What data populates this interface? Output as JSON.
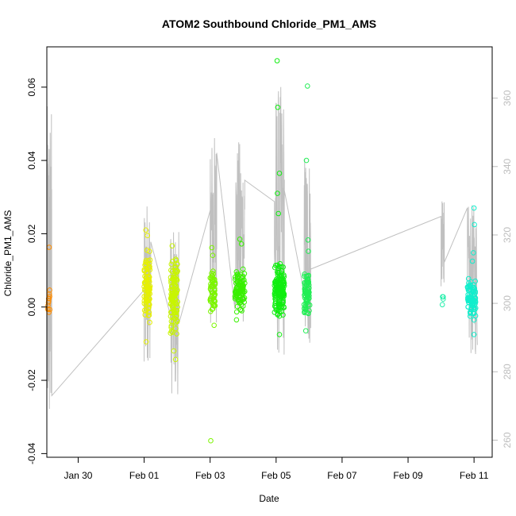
{
  "chart_data": {
    "type": "scatter",
    "title": "ATOM2 Southbound Chloride_PM1_AMS",
    "xlabel": "Date",
    "ylabel": "Chloride_PM1_AMS",
    "x_unit": "days",
    "x_ticks": [
      {
        "value": 30,
        "label": "Jan 30"
      },
      {
        "value": 32,
        "label": "Feb 01"
      },
      {
        "value": 34,
        "label": "Feb 03"
      },
      {
        "value": 36,
        "label": "Feb 05"
      },
      {
        "value": 38,
        "label": "Feb 07"
      },
      {
        "value": 40,
        "label": "Feb 09"
      },
      {
        "value": 42,
        "label": "Feb 11"
      }
    ],
    "xlim": [
      29.05,
      42.55
    ],
    "ylim": [
      -0.041,
      0.071
    ],
    "y_ticks": [
      -0.04,
      -0.02,
      0.0,
      0.02,
      0.04,
      0.06
    ],
    "y_tick_labels": [
      "-0.04",
      "-0.02",
      "0.00",
      "0.02",
      "0.04",
      "0.06"
    ],
    "y2_lim": [
      255,
      375
    ],
    "y2_ticks": [
      260,
      280,
      300,
      320,
      340,
      360
    ],
    "y2_tick_labels": [
      "260",
      "280",
      "300",
      "320",
      "340",
      "360"
    ],
    "y2_color": "#bdbdbd",
    "line_color": "#c0c0c0",
    "grid": false,
    "legend": "none",
    "secondary_series_description": "Right-axis series drawn as grey line",
    "clusters": [
      {
        "x0": 29.08,
        "x1": 29.16,
        "n": 12,
        "ymin": -0.002,
        "ymax": 0.007,
        "color": "#ff8c00",
        "extra": [
          [
            29.12,
            0.0163
          ]
        ]
      },
      {
        "x0": 32.0,
        "x1": 32.18,
        "n": 90,
        "ymin": -0.006,
        "ymax": 0.016,
        "color": "#e5f000",
        "extra": [
          [
            32.05,
            0.021
          ],
          [
            32.1,
            0.0195
          ],
          [
            32.06,
            -0.0095
          ]
        ]
      },
      {
        "x0": 32.8,
        "x1": 33.02,
        "n": 110,
        "ymin": -0.008,
        "ymax": 0.015,
        "color": "#c8f500",
        "extra": [
          [
            32.9,
            -0.012
          ],
          [
            32.95,
            -0.0143
          ],
          [
            32.85,
            0.0167
          ]
        ]
      },
      {
        "x0": 34.0,
        "x1": 34.16,
        "n": 55,
        "ymin": -0.002,
        "ymax": 0.011,
        "color": "#7cf500",
        "extra": [
          [
            34.05,
            0.0162
          ],
          [
            34.08,
            0.0141
          ],
          [
            34.12,
            -0.005
          ],
          [
            34.02,
            -0.0365
          ]
        ]
      },
      {
        "x0": 34.75,
        "x1": 35.05,
        "n": 100,
        "ymin": -0.002,
        "ymax": 0.011,
        "color": "#38f000",
        "extra": [
          [
            34.9,
            0.0185
          ],
          [
            34.95,
            0.0172
          ],
          [
            34.8,
            -0.0035
          ]
        ]
      },
      {
        "x0": 35.95,
        "x1": 36.25,
        "n": 150,
        "ymin": -0.003,
        "ymax": 0.013,
        "color": "#11ee11",
        "extra": [
          [
            36.03,
            0.0672
          ],
          [
            36.05,
            0.0545
          ],
          [
            36.1,
            0.0365
          ],
          [
            36.04,
            0.031
          ],
          [
            36.07,
            0.0255
          ],
          [
            36.1,
            -0.0075
          ]
        ]
      },
      {
        "x0": 36.85,
        "x1": 37.02,
        "n": 80,
        "ymin": -0.003,
        "ymax": 0.01,
        "color": "#22ee55",
        "extra": [
          [
            36.95,
            0.0603
          ],
          [
            36.92,
            0.04
          ],
          [
            36.97,
            0.0183
          ],
          [
            36.98,
            0.0152
          ],
          [
            36.9,
            -0.0065
          ]
        ]
      },
      {
        "x0": 41.03,
        "x1": 41.08,
        "n": 4,
        "ymin": 0.0005,
        "ymax": 0.0048,
        "color": "#22eeaa",
        "extra": []
      },
      {
        "x0": 41.8,
        "x1": 42.05,
        "n": 85,
        "ymin": -0.004,
        "ymax": 0.008,
        "color": "#11eecc",
        "extra": [
          [
            42.0,
            0.027
          ],
          [
            42.01,
            0.0225
          ],
          [
            41.98,
            0.0148
          ],
          [
            41.95,
            0.0125
          ],
          [
            42.0,
            -0.0075
          ]
        ]
      }
    ]
  }
}
